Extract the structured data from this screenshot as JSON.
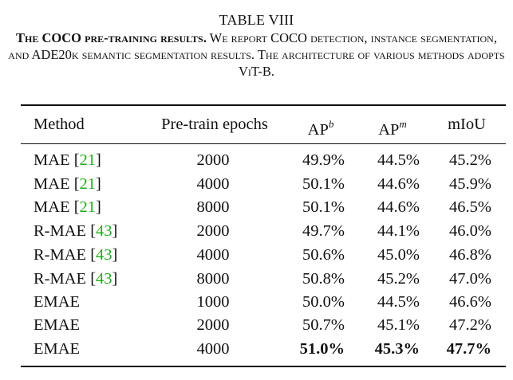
{
  "caption": {
    "table_number": "TABLE VIII",
    "lead": "The COCO pre-training results.",
    "text": " We report COCO detection, instance segmentation, and ADE20k semantic segmentation results. The architecture of various methods adopts ViT-B."
  },
  "table": {
    "headers": {
      "method": "Method",
      "epochs": "Pre-train epochs",
      "apb_base": "AP",
      "apb_sup": "b",
      "apm_base": "AP",
      "apm_sup": "m",
      "miou": "mIoU"
    },
    "rows": [
      {
        "method": "MAE",
        "cite": "21",
        "epochs": "2000",
        "apb": "49.9%",
        "apm": "44.5%",
        "miou": "45.2%"
      },
      {
        "method": "MAE",
        "cite": "21",
        "epochs": "4000",
        "apb": "50.1%",
        "apm": "44.6%",
        "miou": "45.9%"
      },
      {
        "method": "MAE",
        "cite": "21",
        "epochs": "8000",
        "apb": "50.1%",
        "apm": "44.6%",
        "miou": "46.5%"
      },
      {
        "method": "R-MAE",
        "cite": "43",
        "epochs": "2000",
        "apb": "49.7%",
        "apm": "44.1%",
        "miou": "46.0%"
      },
      {
        "method": "R-MAE",
        "cite": "43",
        "epochs": "4000",
        "apb": "50.6%",
        "apm": "45.0%",
        "miou": "46.8%"
      },
      {
        "method": "R-MAE",
        "cite": "43",
        "epochs": "8000",
        "apb": "50.8%",
        "apm": "45.2%",
        "miou": "47.0%"
      },
      {
        "method": "EMAE",
        "cite": "",
        "epochs": "1000",
        "apb": "50.0%",
        "apm": "44.5%",
        "miou": "46.6%"
      },
      {
        "method": "EMAE",
        "cite": "",
        "epochs": "2000",
        "apb": "50.7%",
        "apm": "45.1%",
        "miou": "47.2%"
      },
      {
        "method": "EMAE",
        "cite": "",
        "epochs": "4000",
        "apb": "51.0%",
        "apm": "45.3%",
        "miou": "47.7%"
      }
    ]
  },
  "colors": {
    "citation": "#22aa22",
    "text": "#111111"
  }
}
